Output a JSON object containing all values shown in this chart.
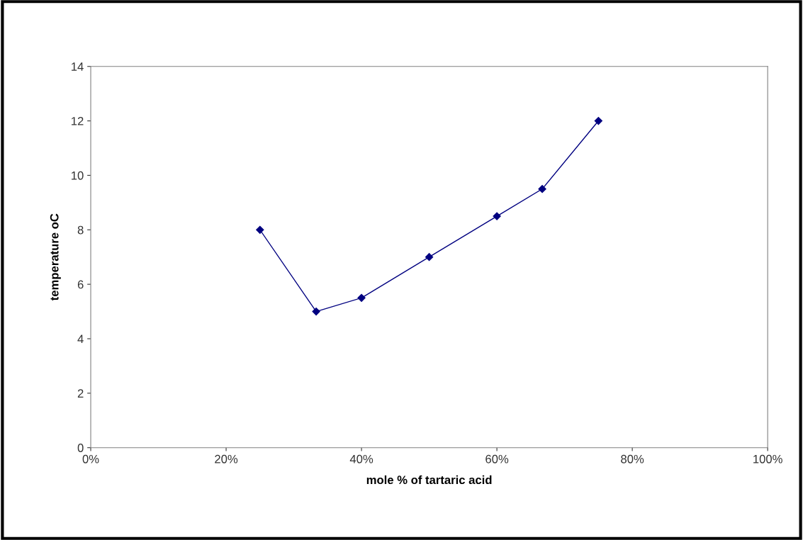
{
  "chart_data": {
    "type": "line",
    "xlabel": "mole % of tartaric acid",
    "ylabel": "temperature oC",
    "x": [
      25,
      33.3,
      40,
      50,
      60,
      66.7,
      75
    ],
    "series": [
      {
        "color": "#000080",
        "values": [
          8,
          5,
          5.5,
          7,
          8.5,
          9.5,
          12
        ]
      }
    ],
    "xlim": [
      0,
      100
    ],
    "xticks": [
      {
        "value": 0,
        "label": "0%"
      },
      {
        "value": 20,
        "label": "20%"
      },
      {
        "value": 40,
        "label": "40%"
      },
      {
        "value": 60,
        "label": "60%"
      },
      {
        "value": 80,
        "label": "80%"
      },
      {
        "value": 100,
        "label": "100%"
      }
    ],
    "ylim": [
      0,
      14
    ],
    "yticks": [
      0,
      2,
      4,
      6,
      8,
      10,
      12,
      14
    ],
    "grid": false,
    "legend": false,
    "marker": "diamond",
    "line_style": "solid"
  }
}
